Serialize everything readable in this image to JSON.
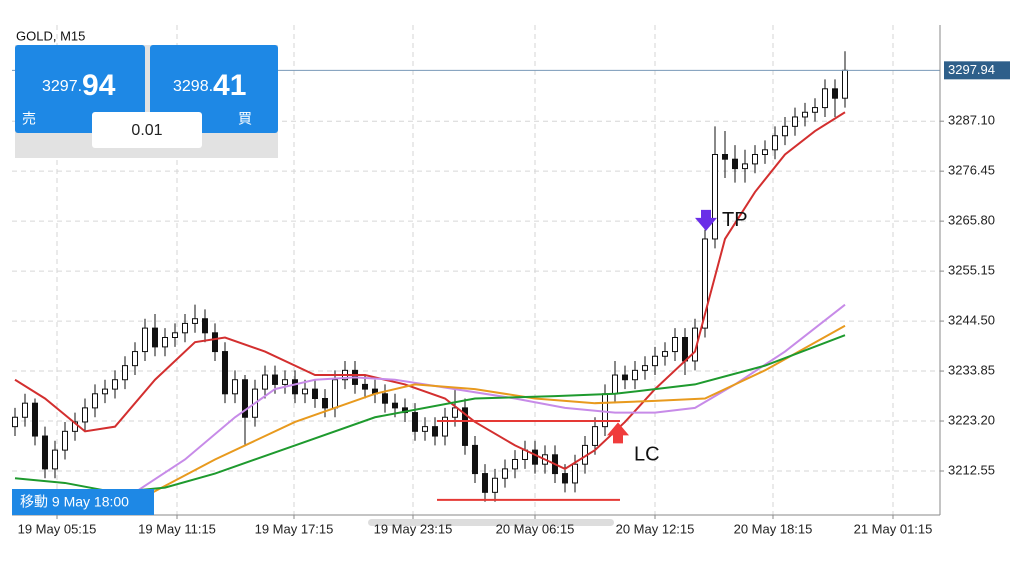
{
  "chart_data": {
    "type": "candlestick",
    "title": "GOLD, M15",
    "open": [
      3222,
      3224,
      3227,
      3220,
      3213,
      3217,
      3221,
      3223,
      3226,
      3229,
      3230,
      3232,
      3235,
      3238,
      3243,
      3239,
      3241,
      3242,
      3244,
      3245,
      3242,
      3238,
      3229,
      3232,
      3224,
      3230,
      3233,
      3231,
      3232,
      3229,
      3230,
      3228,
      3226,
      3232,
      3234,
      3231,
      3230,
      3229,
      3227,
      3226,
      3225,
      3221,
      3222,
      3220,
      3224,
      3226,
      3218,
      3212,
      3208,
      3211,
      3213,
      3215,
      3217,
      3214,
      3216,
      3212,
      3210,
      3214,
      3218,
      3222,
      3229,
      3233,
      3232,
      3234,
      3235,
      3237,
      3238,
      3241,
      3236,
      3243,
      3262,
      3280,
      3279,
      3277,
      3278,
      3280,
      3281,
      3284,
      3286,
      3288,
      3289,
      3290,
      3294,
      3292
    ],
    "high": [
      3226,
      3229,
      3228,
      3222,
      3219,
      3223,
      3225,
      3228,
      3231,
      3232,
      3234,
      3237,
      3240,
      3245,
      3246,
      3243,
      3244,
      3246,
      3248,
      3247,
      3244,
      3240,
      3234,
      3233,
      3232,
      3235,
      3235,
      3234,
      3234,
      3232,
      3232,
      3230,
      3234,
      3236,
      3236,
      3233,
      3232,
      3231,
      3229,
      3228,
      3227,
      3224,
      3224,
      3226,
      3230,
      3228,
      3220,
      3214,
      3213,
      3215,
      3217,
      3219,
      3219,
      3218,
      3218,
      3214,
      3216,
      3220,
      3224,
      3231,
      3236,
      3235,
      3236,
      3237,
      3239,
      3240,
      3243,
      3243,
      3245,
      3264,
      3286,
      3285,
      3282,
      3281,
      3282,
      3283,
      3286,
      3288,
      3290,
      3291,
      3292,
      3296,
      3296,
      3302
    ],
    "low": [
      3220,
      3222,
      3218,
      3211,
      3211,
      3215,
      3219,
      3221,
      3224,
      3227,
      3228,
      3230,
      3233,
      3236,
      3237,
      3237,
      3239,
      3240,
      3242,
      3240,
      3236,
      3227,
      3227,
      3218,
      3222,
      3228,
      3229,
      3229,
      3227,
      3227,
      3226,
      3224,
      3224,
      3230,
      3229,
      3228,
      3227,
      3225,
      3224,
      3223,
      3219,
      3219,
      3218,
      3218,
      3222,
      3216,
      3210,
      3206,
      3206,
      3209,
      3211,
      3213,
      3212,
      3212,
      3210,
      3208,
      3208,
      3212,
      3216,
      3220,
      3227,
      3230,
      3230,
      3232,
      3233,
      3235,
      3236,
      3233,
      3234,
      3241,
      3260,
      3275,
      3274,
      3274,
      3276,
      3278,
      3279,
      3282,
      3284,
      3286,
      3287,
      3288,
      3288,
      3290
    ],
    "close": [
      3224,
      3227,
      3220,
      3213,
      3217,
      3221,
      3223,
      3226,
      3229,
      3230,
      3232,
      3235,
      3238,
      3243,
      3239,
      3241,
      3242,
      3244,
      3245,
      3242,
      3238,
      3229,
      3232,
      3224,
      3230,
      3233,
      3231,
      3232,
      3229,
      3230,
      3228,
      3226,
      3232,
      3234,
      3231,
      3230,
      3229,
      3227,
      3226,
      3225,
      3221,
      3222,
      3220,
      3224,
      3226,
      3218,
      3212,
      3208,
      3211,
      3213,
      3215,
      3217,
      3214,
      3216,
      3212,
      3210,
      3214,
      3218,
      3222,
      3229,
      3233,
      3232,
      3234,
      3235,
      3237,
      3238,
      3241,
      3236,
      3243,
      3262,
      3280,
      3279,
      3277,
      3278,
      3280,
      3281,
      3284,
      3286,
      3288,
      3289,
      3290,
      3294,
      3292,
      3297.94
    ],
    "ma_lines": [
      {
        "color": "#d32f2f",
        "x": [
          0,
          3,
          7,
          10,
          14,
          18,
          21,
          25,
          30,
          35,
          39,
          43,
          46,
          50,
          53,
          55,
          58,
          61,
          64,
          68,
          71,
          74,
          77,
          80,
          83
        ],
        "values": [
          3232,
          3228,
          3221,
          3222,
          3232,
          3240,
          3241,
          3238,
          3233,
          3233,
          3231,
          3228,
          3223,
          3218,
          3215,
          3213,
          3217,
          3223,
          3230,
          3238,
          3262,
          3272,
          3280,
          3285,
          3289
        ]
      },
      {
        "color": "#c78be8",
        "x": [
          12,
          17,
          22,
          26,
          30,
          34,
          38,
          44,
          50,
          55,
          60,
          64,
          68,
          72,
          77,
          83
        ],
        "values": [
          3208,
          3215,
          3224,
          3230,
          3232,
          3232.5,
          3232,
          3230,
          3228,
          3226,
          3225,
          3225,
          3226,
          3231,
          3238,
          3248
        ]
      },
      {
        "color": "#e89a1e",
        "x": [
          12,
          20,
          28,
          36,
          40,
          46,
          52,
          58,
          64,
          69,
          75,
          83
        ],
        "values": [
          3206,
          3215,
          3223,
          3229,
          3231,
          3230,
          3228,
          3227,
          3227.5,
          3228,
          3234,
          3243.5
        ]
      },
      {
        "color": "#1e9a2e",
        "x": [
          0,
          5,
          10,
          15,
          20,
          28,
          36,
          46,
          54,
          60,
          68,
          75,
          83
        ],
        "values": [
          3211,
          3210,
          3208,
          3209,
          3212,
          3218,
          3224,
          3228,
          3228.5,
          3229,
          3231,
          3235,
          3241.5
        ]
      }
    ],
    "levels": [
      {
        "y": 3223.2,
        "x0": 42.2,
        "x1": 60.5,
        "color": "#e53935"
      },
      {
        "y": 3206.4,
        "x0": 42.2,
        "x1": 60.5,
        "color": "#e53935"
      }
    ],
    "annotations": [
      {
        "text": "TP",
        "x": 69.1,
        "y": 3265,
        "color": "#6a2ee8",
        "direction": "down"
      },
      {
        "text": "LC",
        "x": 60.3,
        "y": 3221,
        "color": "#f03c3c",
        "direction": "up"
      }
    ],
    "xlim": [
      -0.3,
      92.5
    ],
    "ylim": [
      3203.17,
      3307.6
    ],
    "xticks": [
      {
        "value": 4.2,
        "label": "19 May 05:15"
      },
      {
        "value": 16.2,
        "label": "19 May 11:15"
      },
      {
        "value": 27.9,
        "label": "19 May 17:15"
      },
      {
        "value": 39.8,
        "label": "19 May 23:15"
      },
      {
        "value": 52,
        "label": "20 May 06:15"
      },
      {
        "value": 64,
        "label": "20 May 12:15"
      },
      {
        "value": 75.8,
        "label": "20 May 18:15"
      },
      {
        "value": 87.8,
        "label": "21 May 01:15"
      }
    ],
    "yticks": [
      {
        "value": 3212.55,
        "label": "3212.55"
      },
      {
        "value": 3223.2,
        "label": "3223.20"
      },
      {
        "value": 3233.85,
        "label": "3233.85"
      },
      {
        "value": 3244.5,
        "label": "3244.50"
      },
      {
        "value": 3255.15,
        "label": "3255.15"
      },
      {
        "value": 3265.8,
        "label": "3265.80"
      },
      {
        "value": 3276.45,
        "label": "3276.45"
      },
      {
        "value": 3287.1,
        "label": "3287.10"
      }
    ],
    "grid": true,
    "cursor_label": "移動 9 May 18:00"
  },
  "panel": {
    "sell": {
      "price_main": "3297.",
      "price_big": "94",
      "label": "売"
    },
    "buy": {
      "price_main": "3298.",
      "price_big": "41",
      "label": "買"
    },
    "lot": "0.01"
  }
}
